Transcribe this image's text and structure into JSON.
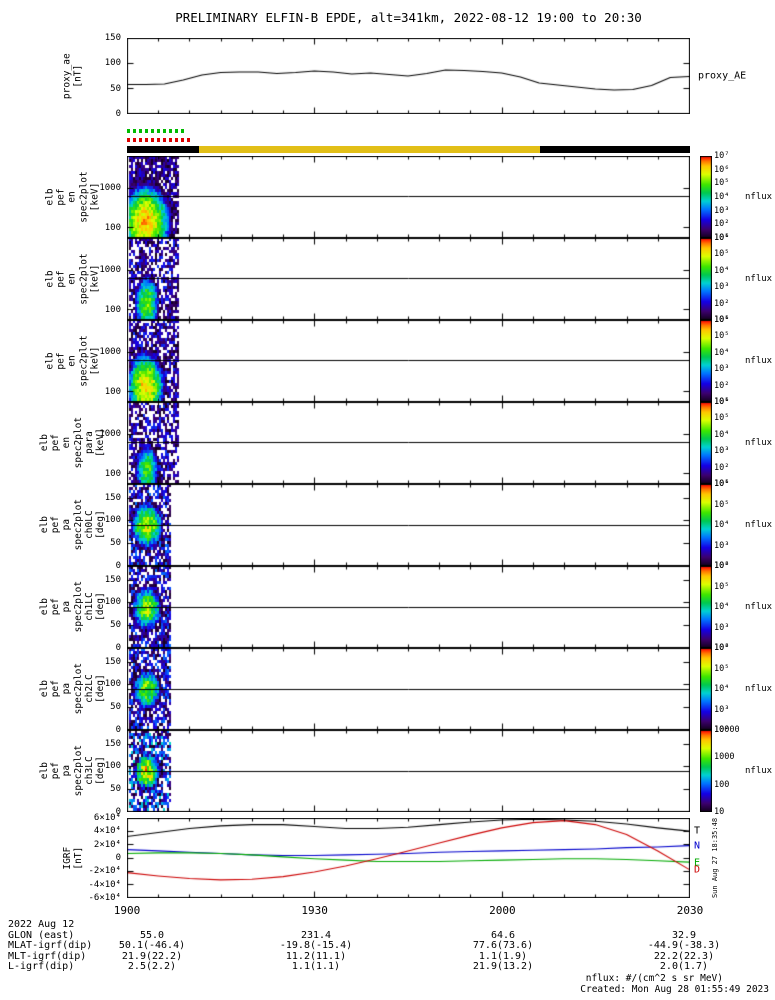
{
  "title": "PRELIMINARY ELFIN-B EPDE, alt=341km, 2022-08-12 19:00 to 20:30",
  "proxy_panel": {
    "ylabel": "proxy_ae\n[nT]",
    "right_label": "proxy_AE"
  },
  "flag_bar": {
    "green_dashes": {
      "color": "#00bb00",
      "start_min": 0,
      "end_min": 9.5
    },
    "red_dashes": {
      "color": "#dd0000",
      "start_min": 0,
      "end_min": 10.5
    },
    "segments": [
      {
        "color": "#000000",
        "start_min": 0,
        "end_min": 11.5
      },
      {
        "color": "#e2bf17",
        "start_min": 11.5,
        "end_min": 66
      },
      {
        "color": "#000000",
        "start_min": 66,
        "end_min": 90
      }
    ]
  },
  "spec_panels": [
    {
      "ylabel": "elb\npef\nen\nspec2plot\n[keV]",
      "cbar_label": "nflux",
      "cbar_ticks": [
        "10⁷",
        "10⁶",
        "10⁵",
        "10⁴",
        "10³",
        "10²",
        "10¹"
      ]
    },
    {
      "ylabel": "elb\npef\nen\nspec2plot\n[keV]",
      "cbar_label": "nflux",
      "cbar_ticks": [
        "10⁶",
        "10⁵",
        "10⁴",
        "10³",
        "10²",
        "10¹"
      ]
    },
    {
      "ylabel": "elb\npef\nen\nspec2plot\n[keV]",
      "cbar_label": "nflux",
      "cbar_ticks": [
        "10⁶",
        "10⁵",
        "10⁴",
        "10³",
        "10²",
        "10¹"
      ]
    },
    {
      "ylabel": "elb\npef\nen\nspec2plot\npara\n[keV]",
      "cbar_label": "nflux",
      "cbar_ticks": [
        "10⁶",
        "10⁵",
        "10⁴",
        "10³",
        "10²",
        "10¹"
      ]
    },
    {
      "ylabel": "elb\npef\npa\nspec2plot\nch0LC\n[deg]",
      "cbar_label": "nflux",
      "cbar_ticks": [
        "10⁶",
        "10⁵",
        "10⁴",
        "10³",
        "10²"
      ]
    },
    {
      "ylabel": "elb\npef\npa\nspec2plot\nch1LC\n[deg]",
      "cbar_label": "nflux",
      "cbar_ticks": [
        "10⁶",
        "10⁵",
        "10⁴",
        "10³",
        "10²"
      ]
    },
    {
      "ylabel": "elb\npef\npa\nspec2plot\nch2LC\n[deg]",
      "cbar_label": "nflux",
      "cbar_ticks": [
        "10⁶",
        "10⁵",
        "10⁴",
        "10³",
        "10²"
      ]
    },
    {
      "ylabel": "elb\npef\npa\nspec2plot\nch3LC\n[deg]",
      "cbar_label": "nflux",
      "cbar_ticks": [
        "10000",
        "1000",
        "100",
        "10"
      ]
    }
  ],
  "igrf_panel": {
    "ylabel": "IGRF\n[nT]",
    "side_note": "Sun Aug 27 18:35:48"
  },
  "xaxis": {
    "tick_labels": [
      "1900",
      "1930",
      "2000",
      "2030"
    ],
    "tick_minutes": [
      0,
      30,
      60,
      90
    ]
  },
  "ephemeris": {
    "date": "2022 Aug 12",
    "rows": [
      {
        "label": "GLON (east)",
        "values": [
          "55.0",
          "231.4",
          "64.6",
          "32.9"
        ]
      },
      {
        "label": "MLAT-igrf(dip)",
        "values": [
          "50.1(-46.4)",
          "-19.8(-15.4)",
          "77.6(73.6)",
          "-44.9(-38.3)"
        ]
      },
      {
        "label": "MLT-igrf(dip)",
        "values": [
          "21.9(22.2)",
          "11.2(11.1)",
          "1.1(1.9)",
          "22.2(22.3)"
        ]
      },
      {
        "label": "L-igrf(dip)",
        "values": [
          "2.5(2.2)",
          "1.1(1.1)",
          "21.9(13.2)",
          "2.0(1.7)"
        ]
      }
    ]
  },
  "footer": {
    "units": "nflux: #/(cm^2 s sr MeV)",
    "created": "Created: Mon Aug 28 01:55:49 2023"
  },
  "chart_data": [
    {
      "type": "line",
      "title": "proxy_AE",
      "ylabel": "proxy_ae [nT]",
      "ylim": [
        0,
        150
      ],
      "yticks": [
        150,
        100,
        50,
        0
      ],
      "ytick_labels": [
        "150",
        "100",
        "50",
        "0"
      ],
      "x_minutes": [
        0,
        3,
        6,
        9,
        12,
        15,
        18,
        21,
        24,
        27,
        30,
        33,
        36,
        39,
        42,
        45,
        48,
        51,
        54,
        57,
        60,
        63,
        66,
        69,
        72,
        75,
        78,
        81,
        84,
        87,
        90
      ],
      "y": [
        57,
        57,
        58,
        66,
        76,
        81,
        82,
        82,
        79,
        81,
        84,
        82,
        78,
        80,
        77,
        74,
        79,
        86,
        85,
        83,
        80,
        72,
        60,
        56,
        52,
        48,
        46,
        47,
        55,
        71,
        73
      ]
    },
    {
      "type": "heatmap",
      "ylabel": "elb pef en spec2plot [keV]",
      "yscale": "log",
      "ylim": [
        55,
        6500
      ],
      "yticks": [
        1000,
        100
      ],
      "ytick_labels": [
        "1000",
        "100"
      ],
      "zlabel": "nflux",
      "zlim_log10": [
        1,
        7
      ],
      "data_window_minutes": [
        0.2,
        8.3
      ],
      "speckle": 0.8,
      "hline": 600,
      "blob": {
        "t_center_min": 3.0,
        "t_sigma_min": 2.0,
        "y_center": 140,
        "y_sigma": 0.5,
        "peak_log10": 6.3
      }
    },
    {
      "type": "heatmap",
      "ylabel": "elb pef en spec2plot [keV]",
      "yscale": "log",
      "ylim": [
        55,
        6500
      ],
      "yticks": [
        1000,
        100
      ],
      "ytick_labels": [
        "1000",
        "100"
      ],
      "zlabel": "nflux",
      "zlim_log10": [
        1,
        6
      ],
      "data_window_minutes": [
        0.2,
        8.3
      ],
      "speckle": 0.6,
      "hline": 600,
      "blob": {
        "t_center_min": 3.2,
        "t_sigma_min": 1.2,
        "y_center": 150,
        "y_sigma": 0.45,
        "peak_log10": 4.4
      }
    },
    {
      "type": "heatmap",
      "ylabel": "elb pef en spec2plot [keV]",
      "yscale": "log",
      "ylim": [
        55,
        6500
      ],
      "yticks": [
        1000,
        100
      ],
      "ytick_labels": [
        "1000",
        "100"
      ],
      "zlabel": "nflux",
      "zlim_log10": [
        1,
        6
      ],
      "data_window_minutes": [
        0.2,
        8.3
      ],
      "speckle": 0.7,
      "hline": 600,
      "blob": {
        "t_center_min": 3.0,
        "t_sigma_min": 1.7,
        "y_center": 140,
        "y_sigma": 0.5,
        "peak_log10": 5.2
      }
    },
    {
      "type": "heatmap",
      "ylabel": "elb pef en spec2plot para [keV]",
      "yscale": "log",
      "ylim": [
        55,
        6500
      ],
      "yticks": [
        1000,
        100
      ],
      "ytick_labels": [
        "1000",
        "100"
      ],
      "zlabel": "nflux",
      "zlim_log10": [
        1,
        6
      ],
      "data_window_minutes": [
        0.2,
        8.3
      ],
      "speckle": 0.6,
      "hline": 600,
      "blob": {
        "t_center_min": 3.2,
        "t_sigma_min": 1.2,
        "y_center": 130,
        "y_sigma": 0.42,
        "peak_log10": 4.2
      }
    },
    {
      "type": "heatmap",
      "ylabel": "elb pef pa spec2plot ch0LC [deg]",
      "yscale": "linear",
      "ylim": [
        0,
        180
      ],
      "yticks": [
        150,
        100,
        50,
        0
      ],
      "ytick_labels": [
        "150",
        "100",
        "50",
        "0"
      ],
      "zlabel": "nflux",
      "zlim_log10": [
        2,
        6
      ],
      "data_window_minutes": [
        0.4,
        6.9
      ],
      "speckle": 0.7,
      "hline": 90,
      "blob": {
        "t_center_min": 3.2,
        "t_sigma_min": 1.7,
        "y_center": 90,
        "y_sigma": 34,
        "peak_log10": 5.0
      }
    },
    {
      "type": "heatmap",
      "ylabel": "elb pef pa spec2plot ch1LC [deg]",
      "yscale": "linear",
      "ylim": [
        0,
        180
      ],
      "yticks": [
        150,
        100,
        50,
        0
      ],
      "ytick_labels": [
        "150",
        "100",
        "50",
        "0"
      ],
      "zlabel": "nflux",
      "zlim_log10": [
        2,
        6
      ],
      "data_window_minutes": [
        0.4,
        6.9
      ],
      "speckle": 0.7,
      "hline": 90,
      "blob": {
        "t_center_min": 3.2,
        "t_sigma_min": 1.6,
        "y_center": 88,
        "y_sigma": 32,
        "peak_log10": 4.9
      }
    },
    {
      "type": "heatmap",
      "ylabel": "elb pef pa spec2plot ch2LC [deg]",
      "yscale": "linear",
      "ylim": [
        0,
        180
      ],
      "yticks": [
        150,
        100,
        50,
        0
      ],
      "ytick_labels": [
        "150",
        "100",
        "50",
        "0"
      ],
      "zlabel": "nflux",
      "zlim_log10": [
        2,
        6
      ],
      "data_window_minutes": [
        0.4,
        6.9
      ],
      "speckle": 0.7,
      "hline": 90,
      "blob": {
        "t_center_min": 3.2,
        "t_sigma_min": 1.5,
        "y_center": 90,
        "y_sigma": 30,
        "peak_log10": 4.8
      }
    },
    {
      "type": "heatmap",
      "ylabel": "elb pef pa spec2plot ch3LC [deg]",
      "yscale": "linear",
      "ylim": [
        0,
        180
      ],
      "yticks": [
        150,
        100,
        50,
        0
      ],
      "ytick_labels": [
        "150",
        "100",
        "50",
        "0"
      ],
      "zlabel": "nflux",
      "zlim_log10": [
        1,
        4
      ],
      "data_window_minutes": [
        0.4,
        6.9
      ],
      "speckle": 0.7,
      "hline": 90,
      "blob": {
        "t_center_min": 3.2,
        "t_sigma_min": 1.5,
        "y_center": 90,
        "y_sigma": 28,
        "peak_log10": 3.5
      }
    },
    {
      "type": "line",
      "ylabel": "IGRF [nT]",
      "ylim": [
        -60000,
        60000
      ],
      "yticks": [
        60000,
        40000,
        20000,
        0,
        -20000,
        -40000,
        -60000
      ],
      "ytick_labels": [
        "6×10⁴",
        "4×10⁴",
        "2×10⁴",
        "0",
        "-2×10⁴",
        "-4×10⁴",
        "-6×10⁴"
      ],
      "x_minutes": [
        0,
        5,
        10,
        15,
        20,
        25,
        30,
        35,
        40,
        45,
        50,
        55,
        60,
        65,
        70,
        75,
        80,
        85,
        90
      ],
      "series": [
        {
          "name": "T",
          "color": "#000000",
          "y": [
            32000,
            38000,
            44000,
            48000,
            50000,
            50000,
            47000,
            44000,
            44000,
            46000,
            50000,
            54000,
            57000,
            58000,
            57000,
            55000,
            51000,
            45000,
            40000
          ]
        },
        {
          "name": "N",
          "color": "#0000cc",
          "y": [
            12000,
            10000,
            8000,
            6000,
            4000,
            3000,
            3000,
            4000,
            5000,
            6000,
            8000,
            9000,
            10000,
            11000,
            12000,
            13000,
            15000,
            16000,
            18000
          ]
        },
        {
          "name": "E",
          "color": "#00aa00",
          "y": [
            6000,
            7000,
            7000,
            6000,
            4000,
            1000,
            -2000,
            -4000,
            -6000,
            -6000,
            -6000,
            -5000,
            -4000,
            -3000,
            -2000,
            -2000,
            -3000,
            -5000,
            -7000
          ]
        },
        {
          "name": "D",
          "color": "#cc0000",
          "y": [
            -23000,
            -28000,
            -32000,
            -34000,
            -33000,
            -29000,
            -22000,
            -13000,
            -2000,
            10000,
            22000,
            34000,
            45000,
            53000,
            56000,
            50000,
            35000,
            10000,
            -18000
          ]
        }
      ]
    }
  ]
}
